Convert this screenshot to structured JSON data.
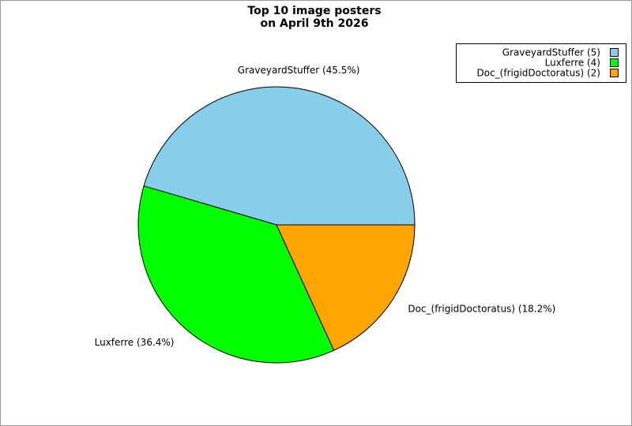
{
  "chart_data": {
    "type": "pie",
    "title": [
      "Top 10 image posters",
      "on April 9th 2026"
    ],
    "categories": [
      "GraveyardStuffer",
      "Luxferre",
      "Doc_(frigidDoctoratus)"
    ],
    "values": [
      45.5,
      36.4,
      18.2
    ],
    "value_labels": [
      "GraveyardStuffer (45.5%)",
      "Luxferre (36.4%)",
      "Doc_(frigidDoctoratus) (18.2%)"
    ],
    "legend_labels": [
      "GraveyardStuffer (5)",
      "Luxferre (4)",
      "Doc_(frigidDoctoratus) (2)"
    ],
    "colors": [
      "#87ceeb",
      "#00ff00",
      "#ffa500"
    ],
    "legend": "upper right"
  }
}
